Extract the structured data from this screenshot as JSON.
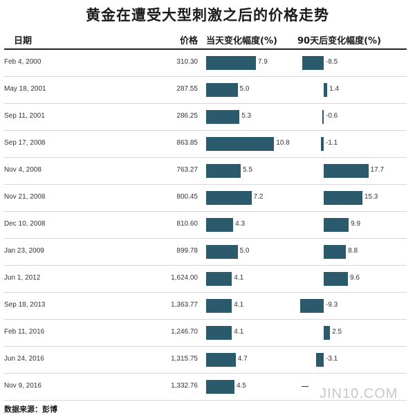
{
  "title": "黄金在遭受大型刺激之后的价格走势",
  "headers": {
    "date": "日期",
    "price": "价格",
    "same_day": "当天变化幅度(%)",
    "after_90": "90天后变化幅度(%)"
  },
  "source": "数据来源：彭博",
  "logo": "JIN10.COM",
  "colors": {
    "bar": "#2a5a6b"
  },
  "chart_data": {
    "type": "table",
    "title": "黄金在遭受大型刺激之后的价格走势",
    "columns": [
      "日期",
      "价格",
      "当天变化幅度(%)",
      "90天后变化幅度(%)"
    ],
    "rows": [
      {
        "date": "Feb 4, 2000",
        "price": "310.30",
        "same_day": 7.9,
        "same_day_label": "7.9",
        "after_90": -8.5,
        "after_90_label": "-8.5"
      },
      {
        "date": "May 18, 2001",
        "price": "287.55",
        "same_day": 5.0,
        "same_day_label": "5.0",
        "after_90": 1.4,
        "after_90_label": "1.4"
      },
      {
        "date": "Sep 11, 2001",
        "price": "286.25",
        "same_day": 5.3,
        "same_day_label": "5.3",
        "after_90": -0.6,
        "after_90_label": "-0.6"
      },
      {
        "date": "Sep 17, 2008",
        "price": "863.85",
        "same_day": 10.8,
        "same_day_label": "10.8",
        "after_90": -1.1,
        "after_90_label": "-1.1"
      },
      {
        "date": "Nov 4, 2008",
        "price": "763.27",
        "same_day": 5.5,
        "same_day_label": "5.5",
        "after_90": 17.7,
        "after_90_label": "17.7"
      },
      {
        "date": "Nov 21, 2008",
        "price": "800.45",
        "same_day": 7.2,
        "same_day_label": "7.2",
        "after_90": 15.3,
        "after_90_label": "15.3"
      },
      {
        "date": "Dec 10, 2008",
        "price": "810.60",
        "same_day": 4.3,
        "same_day_label": "4.3",
        "after_90": 9.9,
        "after_90_label": "9.9"
      },
      {
        "date": "Jan 23, 2009",
        "price": "899.78",
        "same_day": 5.0,
        "same_day_label": "5.0",
        "after_90": 8.8,
        "after_90_label": "8.8"
      },
      {
        "date": "Jun 1, 2012",
        "price": "1,624.00",
        "same_day": 4.1,
        "same_day_label": "4.1",
        "after_90": 9.6,
        "after_90_label": "9.6"
      },
      {
        "date": "Sep 18, 2013",
        "price": "1,363.77",
        "same_day": 4.1,
        "same_day_label": "4.1",
        "after_90": -9.3,
        "after_90_label": "-9.3"
      },
      {
        "date": "Feb 11, 2016",
        "price": "1,246.70",
        "same_day": 4.1,
        "same_day_label": "4.1",
        "after_90": 2.5,
        "after_90_label": "2.5"
      },
      {
        "date": "Jun 24, 2016",
        "price": "1,315.75",
        "same_day": 4.7,
        "same_day_label": "4.7",
        "after_90": -3.1,
        "after_90_label": "-3.1"
      },
      {
        "date": "Nov 9, 2016",
        "price": "1,332.76",
        "same_day": 4.5,
        "same_day_label": "4.5",
        "after_90": null,
        "after_90_label": "—"
      }
    ]
  }
}
